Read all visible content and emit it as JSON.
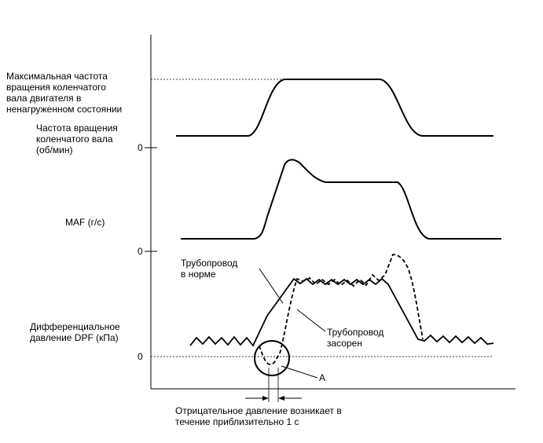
{
  "labels": {
    "max_rpm": [
      "Максимальная частота",
      "вращения коленчатого",
      "вала двигателя в",
      "ненагруженном состоянии"
    ],
    "rpm": [
      "Частота вращения",
      "коленчатого вала",
      "(об/мин)"
    ],
    "maf": "MAF (г/с)",
    "dpf": [
      "Дифференциальное",
      "давление DPF (кПа)"
    ],
    "zero": "0",
    "normal_pipe": [
      "Трубопровод",
      "в норме"
    ],
    "clogged_pipe": [
      "Трубопровод",
      "засорен"
    ],
    "point_a": "A",
    "note": [
      "Отрицательное давление возникает в",
      "течение приблизительно 1 с"
    ]
  }
}
